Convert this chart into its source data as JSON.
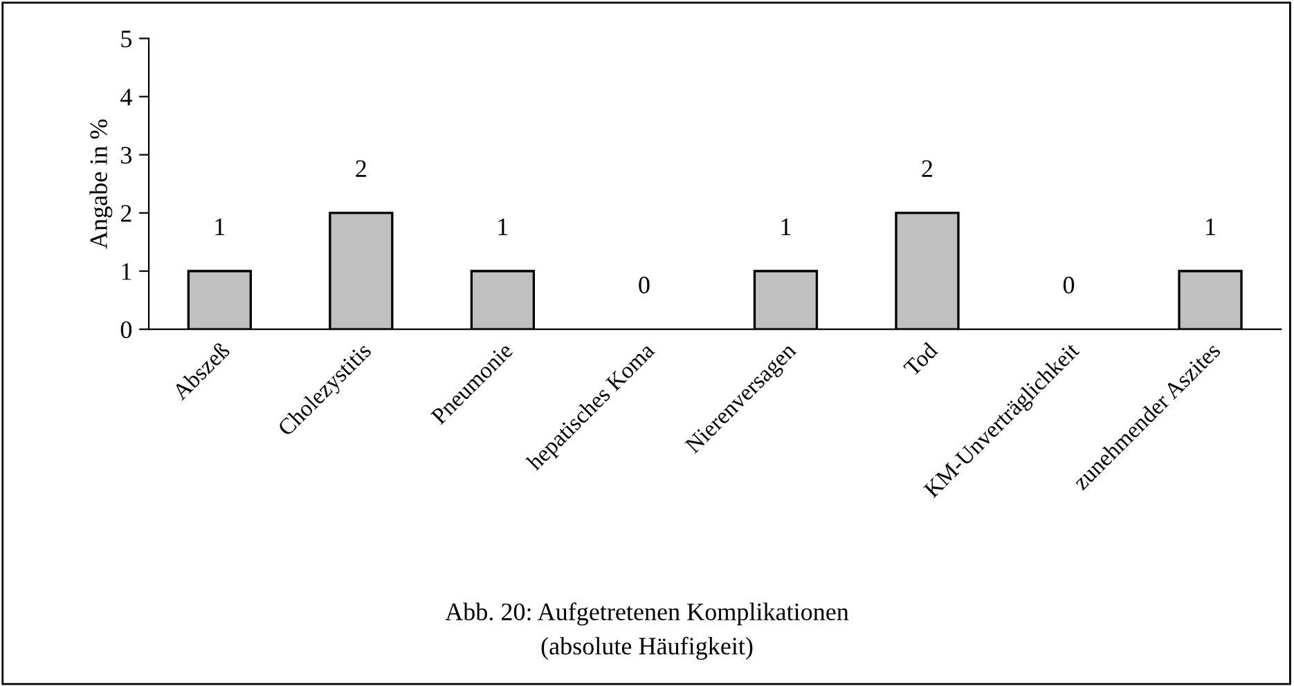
{
  "chart_data": {
    "type": "bar",
    "ylabel": "Angabe in %",
    "categories": [
      "Abszeß",
      "Cholezystitis",
      "Pneumonie",
      "hepatisches Koma",
      "Nierenversagen",
      "Tod",
      "KM-Unverträglichkeit",
      "zunehmender Aszites"
    ],
    "values": [
      1,
      2,
      1,
      0,
      1,
      2,
      0,
      1
    ],
    "color": "#c0c0c0",
    "ylim": [
      0,
      5
    ],
    "yticks": [
      0,
      1,
      2,
      3,
      4,
      5
    ],
    "data_labels": true,
    "grid": false,
    "legend": false,
    "annotations": [
      "Abb. 20: Aufgetretenen Komplikationen",
      "(absolute Häufigkeit)"
    ]
  }
}
